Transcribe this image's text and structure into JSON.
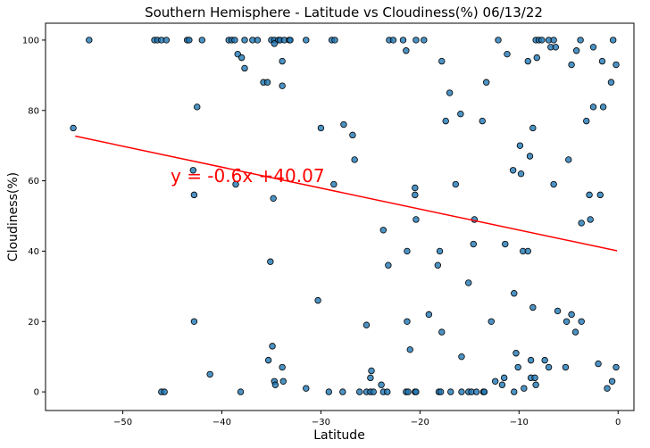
{
  "chart_data": {
    "type": "scatter",
    "title": "Southern Hemisphere - Latitude vs Cloudiness(%) 06/13/22",
    "xlabel": "Latitude",
    "ylabel": "Cloudiness(%)",
    "color": "#1f77b4",
    "xlim": [
      -57.8,
      1.6
    ],
    "ylim": [
      -5.3,
      104.8
    ],
    "xticks": [
      {
        "value": -50,
        "label": "−50"
      },
      {
        "value": -40,
        "label": "−40"
      },
      {
        "value": -30,
        "label": "−30"
      },
      {
        "value": -20,
        "label": "−20"
      },
      {
        "value": -10,
        "label": "−10"
      },
      0
    ],
    "yticks": [
      0,
      20,
      40,
      60,
      80,
      100
    ],
    "x": [
      -53.4,
      -46.8,
      -46.5,
      -46.1,
      -45.6,
      -43.5,
      -43.3,
      -42,
      -39.3,
      -39,
      -38.7,
      -37.7,
      -36.9,
      -36.4,
      -35,
      -34.7,
      -34.3,
      -34.1,
      -33.7,
      -33.2,
      -33.1,
      -31.5,
      -28.9,
      -28.6,
      -23.1,
      -22.7,
      -21.7,
      -20.4,
      -19.6,
      -12.1,
      -8.3,
      -8,
      -7.7,
      -7,
      -6.5,
      -3.8,
      -0.5,
      -46.1,
      -45.8,
      -38.1,
      -29.2,
      -27.8,
      -26.1,
      -25.4,
      -25,
      -24.7,
      -23.7,
      -23.3,
      -21.4,
      -21.2,
      -20.5,
      -20.4,
      -18.1,
      -17.9,
      -16.9,
      -15.8,
      -15.1,
      -14.8,
      -14.3,
      -13.6,
      -13.5,
      -10.5,
      -55,
      -34.7,
      -38.4,
      -38,
      -37.7,
      -35.8,
      -35.4,
      -33.9,
      -33.9,
      -42.5,
      -42.9,
      -42.8,
      -38.6,
      -34.8,
      -30,
      -27.7,
      -26.8,
      -26.6,
      -28.7,
      -21.4,
      -17.8,
      -17,
      -17.4,
      -15.9,
      -13.7,
      -13.3,
      -11.2,
      -9.1,
      -8.2,
      -6.8,
      -6.3,
      -4.7,
      -4.2,
      -2.5,
      -1.6,
      -0.2,
      -0.7,
      -2.5,
      -1.5,
      -3.2,
      -8.6,
      -9.9,
      -8.9,
      -5,
      -10.6,
      -9.8,
      -6.5,
      -16.4,
      -20.5,
      -20.5,
      -2.9,
      -1.8,
      -20.4,
      -14.5,
      -2.8,
      -3.7,
      -23.7,
      -21.3,
      -18,
      -9.6,
      -9.1,
      -14.6,
      -11.4,
      -23.2,
      -18.2,
      -35.1,
      -15.1,
      -10.5,
      -30.3,
      -19.1,
      -8.6,
      -6.1,
      -4.7,
      -5.2,
      -3.7,
      -12.8,
      -21.3,
      -42.8,
      -4.3,
      -17.8,
      -25.4,
      -21,
      -34.9,
      -41.2,
      -35.3,
      -33.9,
      -34.7,
      -34.6,
      -33.8,
      -15.8,
      -10.3,
      -10.1,
      -8.8,
      -7.4,
      -5.3,
      -7,
      -2,
      -0.2,
      -0.6,
      -1.1,
      -24.9,
      -25,
      -23.9,
      -31.5,
      -12.4,
      -11.7,
      -11.5,
      -8.8,
      -8.4,
      -8.3,
      -9.5
    ],
    "y": [
      100,
      100,
      100,
      100,
      100,
      100,
      100,
      100,
      100,
      100,
      100,
      100,
      100,
      100,
      100,
      100,
      100,
      100,
      100,
      100,
      100,
      100,
      100,
      100,
      100,
      100,
      100,
      100,
      100,
      100,
      100,
      100,
      100,
      100,
      100,
      100,
      100,
      0,
      0,
      0,
      0,
      0,
      0,
      0,
      0,
      0,
      0,
      0,
      0,
      0,
      0,
      0,
      0,
      0,
      0,
      0,
      0,
      0,
      0,
      0,
      0,
      0,
      75,
      99,
      96,
      95,
      92,
      88,
      88,
      87,
      94,
      81,
      63,
      56,
      59,
      55,
      75,
      76,
      73,
      66,
      59,
      97,
      94,
      85,
      77,
      79,
      77,
      88,
      96,
      94,
      95,
      98,
      98,
      93,
      97,
      98,
      94,
      93,
      88,
      81,
      81,
      77,
      75,
      70,
      67,
      66,
      63,
      62,
      59,
      59,
      58,
      56,
      56,
      56,
      49,
      49,
      49,
      48,
      46,
      40,
      40,
      40,
      40,
      42,
      42,
      36,
      36,
      37,
      31,
      28,
      26,
      22,
      24,
      23,
      22,
      20,
      20,
      20,
      20,
      20,
      17,
      17,
      19,
      12,
      13,
      5,
      9,
      7,
      3,
      2,
      3,
      10,
      11,
      7,
      9,
      9,
      7,
      7,
      8,
      7,
      3,
      1,
      6,
      4,
      2,
      1,
      3,
      2,
      4,
      4,
      4,
      2,
      1
    ],
    "fit": {
      "color": "#ff0000",
      "x": [
        -54.8,
        -0.1
      ],
      "y": [
        72.7,
        40.1
      ]
    },
    "annotation": "y = -0.6x +40.07"
  }
}
